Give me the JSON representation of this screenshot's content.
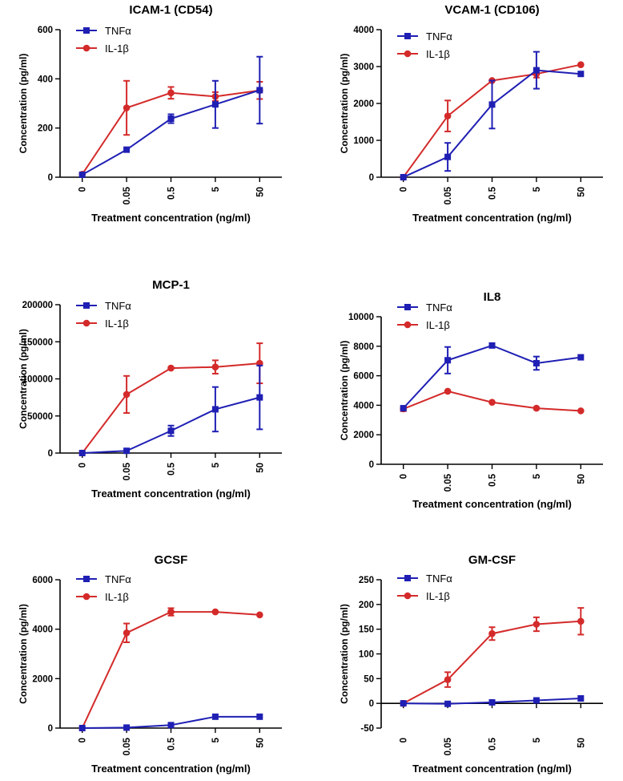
{
  "figure": {
    "colors": {
      "TNFa": "#1f1fb4",
      "IL1b": "#d42a2a",
      "axis": "#000000"
    }
  },
  "chart_data": [
    {
      "id": "icam1",
      "type": "line",
      "title": "ICAM-1 (CD54)",
      "xlabel": "Treatment concentration (ng/ml)",
      "ylabel": "Concentration (pg/ml)",
      "categories": [
        "0",
        "0.05",
        "0.5",
        "5",
        "50"
      ],
      "ylim": [
        0,
        600
      ],
      "yticks": [
        0,
        200,
        400,
        600
      ],
      "legend_position": "top-left",
      "series": [
        {
          "name": "TNFα",
          "key": "TNFa",
          "marker": "square",
          "values": [
            10,
            112,
            238,
            296,
            354
          ],
          "err": [
            0,
            0,
            18,
            96,
            136
          ]
        },
        {
          "name": "IL-1β",
          "key": "IL1b",
          "marker": "circle",
          "values": [
            12,
            282,
            343,
            328,
            353
          ],
          "err": [
            0,
            110,
            24,
            18,
            35
          ]
        }
      ]
    },
    {
      "id": "vcam1",
      "type": "line",
      "title": "VCAM-1 (CD106)",
      "xlabel": "Treatment concentration (ng/ml)",
      "ylabel": "Concentration (pg/ml)",
      "categories": [
        "0",
        "0.05",
        "0.5",
        "5",
        "50"
      ],
      "ylim": [
        0,
        4000
      ],
      "yticks": [
        0,
        1000,
        2000,
        3000,
        4000
      ],
      "legend_position": "top-left",
      "series": [
        {
          "name": "TNFα",
          "key": "TNFa",
          "marker": "square",
          "values": [
            0,
            550,
            1970,
            2900,
            2800
          ],
          "err": [
            0,
            380,
            650,
            500,
            0
          ]
        },
        {
          "name": "IL-1β",
          "key": "IL1b",
          "marker": "circle",
          "values": [
            0,
            1660,
            2620,
            2800,
            3050
          ],
          "err": [
            0,
            420,
            0,
            100,
            0
          ]
        }
      ]
    },
    {
      "id": "mcp1",
      "type": "line",
      "title": "MCP-1",
      "xlabel": "Treatment concentration (ng/ml)",
      "ylabel": "Concentration (pg/ml)",
      "categories": [
        "0",
        "0.05",
        "0.5",
        "5",
        "50"
      ],
      "ylim": [
        0,
        200000
      ],
      "yticks": [
        0,
        50000,
        100000,
        150000,
        200000
      ],
      "legend_position": "top-left",
      "series": [
        {
          "name": "TNFα",
          "key": "TNFa",
          "marker": "square",
          "values": [
            0,
            3000,
            30000,
            59000,
            75000
          ],
          "err": [
            0,
            0,
            7000,
            30000,
            43000
          ]
        },
        {
          "name": "IL-1β",
          "key": "IL1b",
          "marker": "circle",
          "values": [
            0,
            79000,
            114500,
            116000,
            121000
          ],
          "err": [
            0,
            25000,
            0,
            9000,
            27000
          ]
        }
      ]
    },
    {
      "id": "il8",
      "type": "line",
      "title": "IL8",
      "xlabel": "Treatment concentration (ng/ml)",
      "ylabel": "Concentration (pg/ml)",
      "categories": [
        "0",
        "0.05",
        "0.5",
        "5",
        "50"
      ],
      "ylim": [
        0,
        10000
      ],
      "yticks": [
        0,
        2000,
        4000,
        6000,
        8000,
        10000
      ],
      "legend_position": "top-left",
      "series": [
        {
          "name": "TNFα",
          "key": "TNFa",
          "marker": "square",
          "values": [
            3800,
            7050,
            8050,
            6850,
            7250
          ],
          "err": [
            0,
            900,
            0,
            450,
            0
          ]
        },
        {
          "name": "IL-1β",
          "key": "IL1b",
          "marker": "circle",
          "values": [
            3750,
            4950,
            4200,
            3800,
            3620
          ],
          "err": [
            150,
            0,
            0,
            0,
            0
          ]
        }
      ]
    },
    {
      "id": "gcsf",
      "type": "line",
      "title": "GCSF",
      "xlabel": "Treatment concentration (ng/ml)",
      "ylabel": "Concentration (pg/ml)",
      "categories": [
        "0",
        "0.05",
        "0.5",
        "5",
        "50"
      ],
      "ylim": [
        0,
        6000
      ],
      "yticks": [
        0,
        2000,
        4000,
        6000
      ],
      "legend_position": "top-left",
      "series": [
        {
          "name": "TNFα",
          "key": "TNFa",
          "marker": "square",
          "values": [
            0,
            20,
            120,
            460,
            460
          ],
          "err": [
            0,
            0,
            0,
            0,
            0
          ]
        },
        {
          "name": "IL-1β",
          "key": "IL1b",
          "marker": "circle",
          "values": [
            0,
            3850,
            4700,
            4700,
            4580
          ],
          "err": [
            0,
            380,
            150,
            0,
            0
          ]
        }
      ]
    },
    {
      "id": "gmcsf",
      "type": "line",
      "title": "GM-CSF",
      "xlabel": "Treatment concentration (ng/ml)",
      "ylabel": "Concentration (pg/ml)",
      "categories": [
        "0",
        "0.05",
        "0.5",
        "5",
        "50"
      ],
      "ylim": [
        -50,
        250
      ],
      "yticks": [
        -50,
        0,
        50,
        100,
        150,
        200,
        250
      ],
      "legend_position": "top-left",
      "series": [
        {
          "name": "TNFα",
          "key": "TNFa",
          "marker": "square",
          "values": [
            0,
            -1,
            2,
            6,
            10
          ],
          "err": [
            0,
            0,
            0,
            0,
            0
          ]
        },
        {
          "name": "IL-1β",
          "key": "IL1b",
          "marker": "circle",
          "values": [
            0,
            48,
            141,
            160,
            166
          ],
          "err": [
            0,
            15,
            13,
            14,
            27
          ]
        }
      ]
    }
  ]
}
